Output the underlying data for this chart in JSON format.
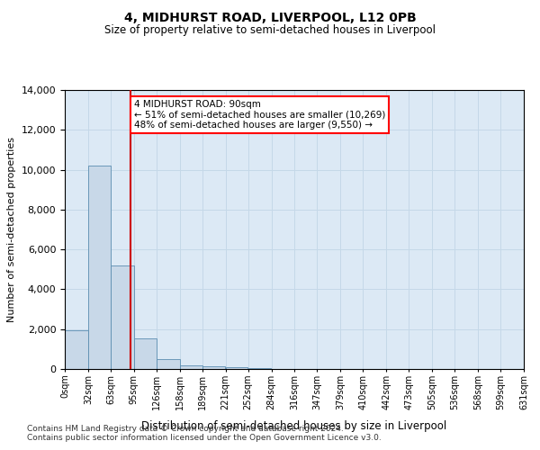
{
  "title": "4, MIDHURST ROAD, LIVERPOOL, L12 0PB",
  "subtitle": "Size of property relative to semi-detached houses in Liverpool",
  "xlabel": "Distribution of semi-detached houses by size in Liverpool",
  "ylabel": "Number of semi-detached properties",
  "footnote1": "Contains HM Land Registry data © Crown copyright and database right 2024.",
  "footnote2": "Contains public sector information licensed under the Open Government Licence v3.0.",
  "annotation_line1": "4 MIDHURST ROAD: 90sqm",
  "annotation_line2": "← 51% of semi-detached houses are smaller (10,269)",
  "annotation_line3": "48% of semi-detached houses are larger (9,550) →",
  "property_size": 90,
  "bin_edges": [
    0,
    32,
    63,
    95,
    126,
    158,
    189,
    221,
    252,
    284,
    316,
    347,
    379,
    410,
    442,
    473,
    505,
    536,
    568,
    599,
    631
  ],
  "bar_values": [
    1950,
    10200,
    5200,
    1550,
    500,
    200,
    120,
    70,
    35,
    0,
    0,
    0,
    0,
    0,
    0,
    0,
    0,
    0,
    0,
    0
  ],
  "bar_color": "#c8d8e8",
  "bar_edge_color": "#5b8db0",
  "vline_color": "#cc0000",
  "vline_x": 90,
  "ylim": [
    0,
    14000
  ],
  "yticks": [
    0,
    2000,
    4000,
    6000,
    8000,
    10000,
    12000,
    14000
  ],
  "xtick_labels": [
    "0sqm",
    "32sqm",
    "63sqm",
    "95sqm",
    "126sqm",
    "158sqm",
    "189sqm",
    "221sqm",
    "252sqm",
    "284sqm",
    "316sqm",
    "347sqm",
    "379sqm",
    "410sqm",
    "442sqm",
    "473sqm",
    "505sqm",
    "536sqm",
    "568sqm",
    "599sqm",
    "631sqm"
  ],
  "grid_color": "#c5d8e8",
  "background_color": "#dce9f5"
}
